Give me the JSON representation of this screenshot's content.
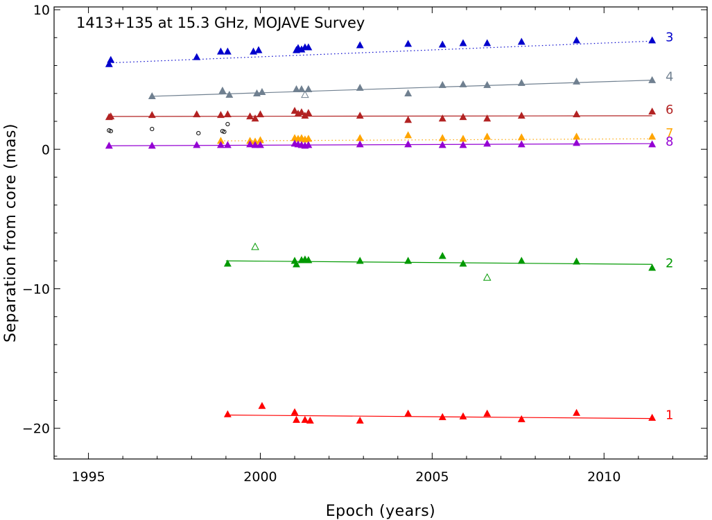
{
  "chart_data": {
    "type": "scatter",
    "title": "1413+135 at 15.3 GHz, MOJAVE Survey",
    "xlabel": "Epoch (years)",
    "ylabel": "Separation from core (mas)",
    "xlim": [
      1994.0,
      2013.0
    ],
    "ylim": [
      -22.2,
      10.2
    ],
    "x_ticks": [
      1995,
      2000,
      2005,
      2010
    ],
    "x_tick_labels": [
      "1995",
      "2000",
      "2005",
      "2010"
    ],
    "y_ticks": [
      10,
      0,
      -10,
      -20
    ],
    "y_tick_labels": [
      "10",
      "0",
      "−10",
      "−20"
    ],
    "grid": false,
    "series": [
      {
        "name": "3",
        "color": "#0000cc",
        "line_style": "dotted",
        "label_y": 8.1,
        "fit": [
          [
            1995.7,
            6.2
          ],
          [
            2011.4,
            7.75
          ]
        ],
        "points": [
          [
            1995.6,
            6.1
          ],
          [
            1995.65,
            6.4
          ],
          [
            1998.15,
            6.6
          ],
          [
            1998.85,
            7.0
          ],
          [
            1999.05,
            7.0
          ],
          [
            1999.8,
            7.0
          ],
          [
            1999.95,
            7.1
          ],
          [
            2001.05,
            7.1
          ],
          [
            2001.1,
            7.25
          ],
          [
            2001.2,
            7.15
          ],
          [
            2001.3,
            7.3
          ],
          [
            2001.4,
            7.3
          ],
          [
            2002.9,
            7.45
          ],
          [
            2004.3,
            7.55
          ],
          [
            2005.3,
            7.5
          ],
          [
            2005.9,
            7.6
          ],
          [
            2006.6,
            7.6
          ],
          [
            2007.6,
            7.7
          ],
          [
            2009.2,
            7.8
          ],
          [
            2011.4,
            7.8
          ]
        ],
        "open_points": []
      },
      {
        "name": "4",
        "color": "#708090",
        "line_style": "solid",
        "label_y": 5.25,
        "fit": [
          [
            1996.9,
            3.8
          ],
          [
            2011.4,
            4.95
          ]
        ],
        "points": [
          [
            1996.85,
            3.8
          ],
          [
            1998.9,
            4.2
          ],
          [
            1999.1,
            3.9
          ],
          [
            1999.9,
            4.0
          ],
          [
            2000.05,
            4.1
          ],
          [
            2001.05,
            4.3
          ],
          [
            2001.2,
            4.3
          ],
          [
            2001.4,
            4.3
          ],
          [
            2002.9,
            4.4
          ],
          [
            2004.3,
            4.0
          ],
          [
            2005.3,
            4.6
          ],
          [
            2005.9,
            4.65
          ],
          [
            2006.6,
            4.6
          ],
          [
            2007.6,
            4.75
          ],
          [
            2009.2,
            4.85
          ],
          [
            2011.4,
            4.95
          ]
        ],
        "open_points": [
          [
            2001.3,
            3.9
          ]
        ]
      },
      {
        "name": "6",
        "color": "#b22222",
        "line_style": "solid",
        "label_y": 2.9,
        "fit": [
          [
            1995.6,
            2.35
          ],
          [
            2011.4,
            2.4
          ]
        ],
        "points": [
          [
            1995.6,
            2.3
          ],
          [
            1995.65,
            2.35
          ],
          [
            1996.85,
            2.45
          ],
          [
            1998.15,
            2.5
          ],
          [
            1998.85,
            2.45
          ],
          [
            1999.05,
            2.5
          ],
          [
            1999.7,
            2.35
          ],
          [
            1999.85,
            2.2
          ],
          [
            2000.0,
            2.5
          ],
          [
            2001.0,
            2.75
          ],
          [
            2001.1,
            2.55
          ],
          [
            2001.2,
            2.65
          ],
          [
            2001.3,
            2.4
          ],
          [
            2001.4,
            2.6
          ],
          [
            2002.9,
            2.4
          ],
          [
            2004.3,
            2.1
          ],
          [
            2005.3,
            2.2
          ],
          [
            2005.9,
            2.3
          ],
          [
            2006.6,
            2.2
          ],
          [
            2007.6,
            2.4
          ],
          [
            2009.2,
            2.5
          ],
          [
            2011.4,
            2.7
          ]
        ],
        "open_points": []
      },
      {
        "name": "7",
        "color": "#ffa500",
        "line_style": "dotted",
        "label_y": 1.2,
        "fit": [
          [
            1998.85,
            0.6
          ],
          [
            2011.4,
            0.75
          ]
        ],
        "points": [
          [
            1998.85,
            0.6
          ],
          [
            1999.7,
            0.6
          ],
          [
            1999.85,
            0.55
          ],
          [
            2000.0,
            0.65
          ],
          [
            2001.0,
            0.8
          ],
          [
            2001.1,
            0.75
          ],
          [
            2001.2,
            0.8
          ],
          [
            2001.3,
            0.7
          ],
          [
            2001.4,
            0.75
          ],
          [
            2002.9,
            0.8
          ],
          [
            2004.3,
            1.0
          ],
          [
            2005.3,
            0.8
          ],
          [
            2005.9,
            0.75
          ],
          [
            2006.6,
            0.9
          ],
          [
            2007.6,
            0.85
          ],
          [
            2009.2,
            0.9
          ],
          [
            2011.4,
            0.9
          ]
        ],
        "open_points": []
      },
      {
        "name": "8",
        "color": "#9400d3",
        "line_style": "solid",
        "label_y": 0.6,
        "fit": [
          [
            1995.6,
            0.25
          ],
          [
            2011.4,
            0.4
          ]
        ],
        "points": [
          [
            1995.6,
            0.25
          ],
          [
            1996.85,
            0.25
          ],
          [
            1998.15,
            0.3
          ],
          [
            1998.85,
            0.3
          ],
          [
            1999.05,
            0.3
          ],
          [
            1999.7,
            0.35
          ],
          [
            1999.85,
            0.3
          ],
          [
            2000.0,
            0.3
          ],
          [
            2001.0,
            0.4
          ],
          [
            2001.1,
            0.35
          ],
          [
            2001.2,
            0.3
          ],
          [
            2001.3,
            0.25
          ],
          [
            2001.4,
            0.3
          ],
          [
            2002.9,
            0.35
          ],
          [
            2004.3,
            0.35
          ],
          [
            2005.3,
            0.3
          ],
          [
            2005.9,
            0.3
          ],
          [
            2006.6,
            0.4
          ],
          [
            2007.6,
            0.35
          ],
          [
            2009.2,
            0.45
          ],
          [
            2011.4,
            0.35
          ]
        ],
        "open_points": []
      },
      {
        "name": "2",
        "color": "#009900",
        "line_style": "solid",
        "label_y": -8.1,
        "fit": [
          [
            1999.0,
            -8.0
          ],
          [
            2011.4,
            -8.25
          ]
        ],
        "points": [
          [
            1999.05,
            -8.2
          ],
          [
            2001.0,
            -8.0
          ],
          [
            2001.05,
            -8.25
          ],
          [
            2001.2,
            -7.95
          ],
          [
            2001.3,
            -7.9
          ],
          [
            2001.4,
            -7.95
          ],
          [
            2002.9,
            -8.0
          ],
          [
            2004.3,
            -8.0
          ],
          [
            2005.3,
            -7.65
          ],
          [
            2005.9,
            -8.2
          ],
          [
            2007.6,
            -8.0
          ],
          [
            2009.2,
            -8.05
          ],
          [
            2011.4,
            -8.5
          ]
        ],
        "open_points": [
          [
            1999.85,
            -7.0
          ],
          [
            2006.6,
            -9.2
          ]
        ]
      },
      {
        "name": "1",
        "color": "#ff0000",
        "line_style": "solid",
        "label_y": -19.0,
        "fit": [
          [
            1999.05,
            -19.05
          ],
          [
            2011.4,
            -19.3
          ]
        ],
        "points": [
          [
            1999.05,
            -19.0
          ],
          [
            2000.05,
            -18.4
          ],
          [
            2001.0,
            -18.85
          ],
          [
            2001.05,
            -19.4
          ],
          [
            2001.3,
            -19.4
          ],
          [
            2001.45,
            -19.45
          ],
          [
            2002.9,
            -19.45
          ],
          [
            2004.3,
            -18.95
          ],
          [
            2005.3,
            -19.2
          ],
          [
            2005.9,
            -19.15
          ],
          [
            2006.6,
            -18.95
          ],
          [
            2007.6,
            -19.35
          ],
          [
            2009.2,
            -18.9
          ],
          [
            2011.4,
            -19.25
          ]
        ],
        "open_points": []
      },
      {
        "name": "",
        "color": "#000000",
        "line_style": "none",
        "label_y": null,
        "fit": [],
        "points": [],
        "open_circles": [
          [
            1995.6,
            1.35
          ],
          [
            1995.65,
            1.3
          ],
          [
            1996.85,
            1.45
          ],
          [
            1998.2,
            1.15
          ],
          [
            1998.9,
            1.3
          ],
          [
            1998.95,
            1.25
          ],
          [
            1999.05,
            1.8
          ]
        ]
      }
    ]
  }
}
